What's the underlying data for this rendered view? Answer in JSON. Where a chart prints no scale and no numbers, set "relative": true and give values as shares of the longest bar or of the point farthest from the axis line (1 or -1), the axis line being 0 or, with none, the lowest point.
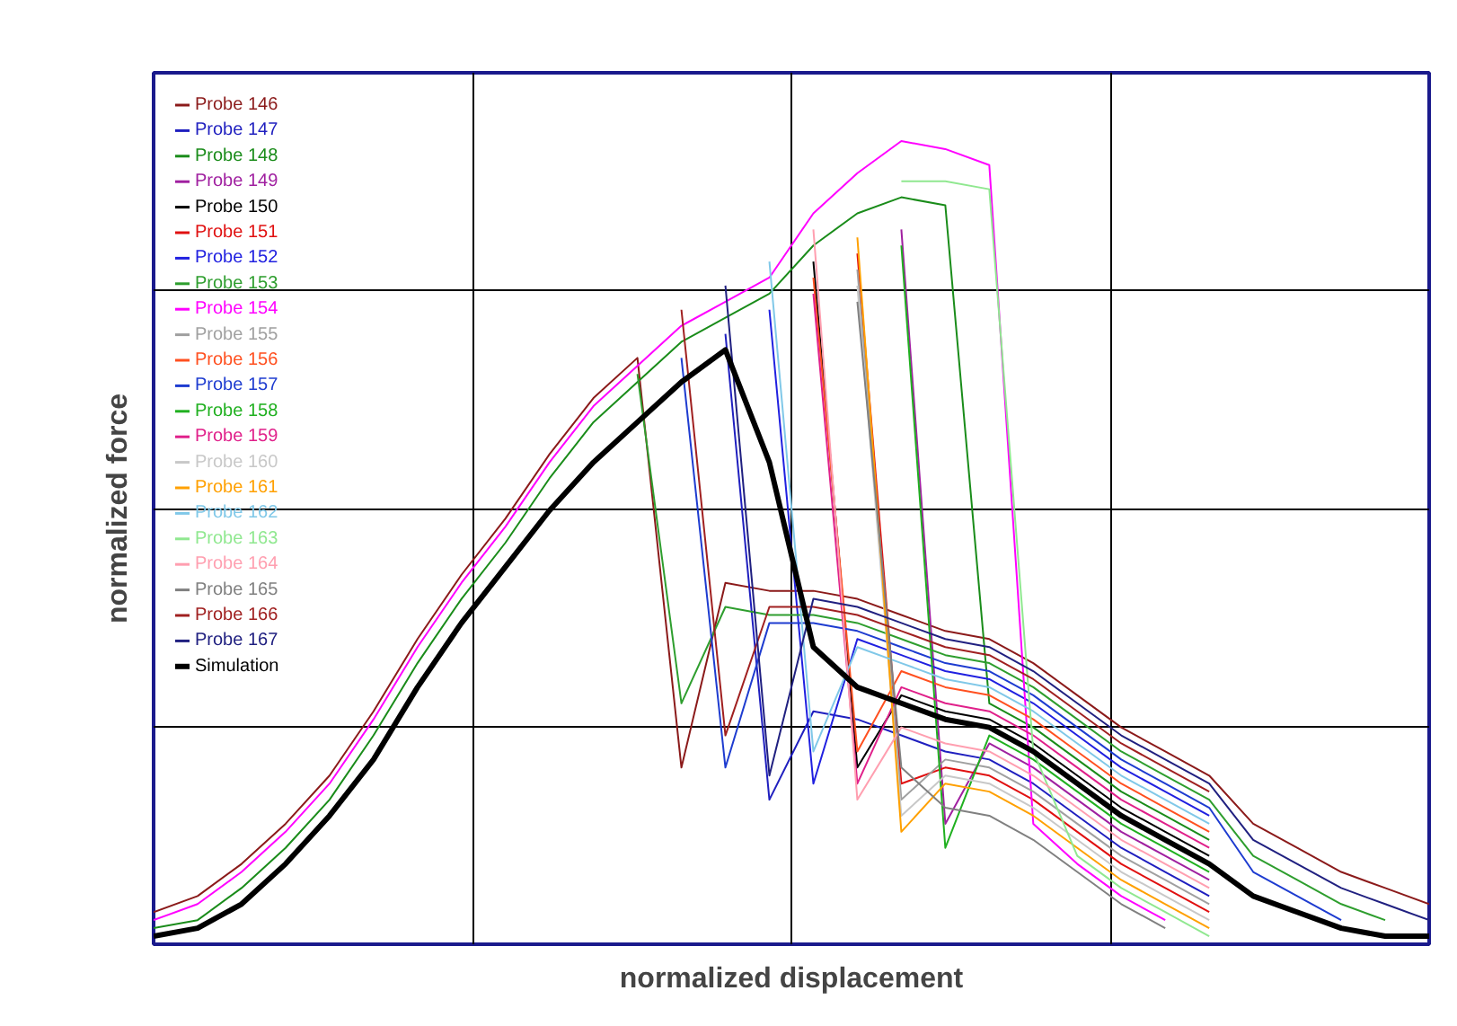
{
  "chart_data": {
    "type": "line",
    "relative": true,
    "xlabel": "normalized displacement",
    "ylabel": "normalized force",
    "grid": true,
    "legend": "top left",
    "tick_labels": false,
    "marker": "none",
    "line_style": "solid",
    "categories": [
      null,
      null,
      null,
      null,
      null,
      null,
      null,
      null,
      null,
      null,
      null,
      null,
      null,
      null,
      null,
      null,
      null,
      null,
      null,
      null,
      null,
      null,
      null,
      null,
      null,
      null,
      null,
      null,
      null,
      null
    ],
    "series": [
      {
        "name": "Probe 146",
        "color": "#8b1a1a",
        "values": [
          0.04,
          0.06,
          0.1,
          0.15,
          0.21,
          0.29,
          0.38,
          0.46,
          0.53,
          0.61,
          0.68,
          0.73,
          0.22,
          0.45,
          0.44,
          0.44,
          0.43,
          0.41,
          0.39,
          0.38,
          0.35,
          0.31,
          0.27,
          0.24,
          0.21,
          0.15,
          0.12,
          0.09,
          0.07,
          0.05
        ]
      },
      {
        "name": "Probe 147",
        "color": "#1f1fbf",
        "values": [
          null,
          null,
          null,
          null,
          null,
          null,
          null,
          null,
          null,
          null,
          null,
          null,
          null,
          0.76,
          0.18,
          0.29,
          0.28,
          0.26,
          0.24,
          0.23,
          0.2,
          0.16,
          0.12,
          0.09,
          0.06,
          null,
          null,
          null,
          null,
          null
        ]
      },
      {
        "name": "Probe 148",
        "color": "#1a8c1a",
        "values": [
          0.02,
          0.03,
          0.07,
          0.12,
          0.18,
          0.26,
          0.35,
          0.43,
          0.5,
          0.58,
          0.65,
          0.7,
          0.75,
          0.78,
          0.81,
          0.87,
          0.91,
          0.93,
          0.92,
          0.3,
          0.27,
          0.23,
          0.19,
          0.16,
          0.13,
          null,
          null,
          null,
          null,
          null
        ]
      },
      {
        "name": "Probe 149",
        "color": "#a020a0",
        "values": [
          null,
          null,
          null,
          null,
          null,
          null,
          null,
          null,
          null,
          null,
          null,
          null,
          null,
          null,
          null,
          null,
          null,
          0.89,
          0.15,
          0.25,
          0.22,
          0.18,
          0.14,
          0.11,
          0.08,
          null,
          null,
          null,
          null,
          null
        ]
      },
      {
        "name": "Probe 150",
        "color": "#000000",
        "values": [
          null,
          null,
          null,
          null,
          null,
          null,
          null,
          null,
          null,
          null,
          null,
          null,
          null,
          null,
          null,
          0.85,
          0.22,
          0.31,
          0.29,
          0.28,
          0.25,
          0.21,
          0.17,
          0.14,
          0.11,
          null,
          null,
          null,
          null,
          null
        ]
      },
      {
        "name": "Probe 151",
        "color": "#e01010",
        "values": [
          null,
          null,
          null,
          null,
          null,
          null,
          null,
          null,
          null,
          null,
          null,
          null,
          null,
          null,
          null,
          null,
          0.86,
          0.2,
          0.22,
          0.21,
          0.18,
          0.14,
          0.1,
          0.07,
          0.04,
          null,
          null,
          null,
          null,
          null
        ]
      },
      {
        "name": "Probe 152",
        "color": "#2020e0",
        "values": [
          null,
          null,
          null,
          null,
          null,
          null,
          null,
          null,
          null,
          null,
          null,
          null,
          null,
          null,
          0.79,
          0.2,
          0.38,
          0.36,
          0.34,
          0.33,
          0.3,
          0.26,
          0.22,
          0.19,
          0.16,
          null,
          null,
          null,
          null,
          null
        ]
      },
      {
        "name": "Probe 153",
        "color": "#2e9e2e",
        "values": [
          null,
          null,
          null,
          null,
          null,
          null,
          null,
          null,
          null,
          null,
          null,
          0.71,
          0.3,
          0.42,
          0.41,
          0.41,
          0.4,
          0.38,
          0.36,
          0.35,
          0.32,
          0.28,
          0.24,
          0.21,
          0.18,
          0.11,
          0.08,
          0.05,
          0.03,
          null
        ]
      },
      {
        "name": "Probe 154",
        "color": "#ff00ff",
        "values": [
          0.03,
          0.05,
          0.09,
          0.14,
          0.2,
          0.28,
          0.37,
          0.45,
          0.52,
          0.6,
          0.67,
          0.72,
          0.77,
          0.8,
          0.83,
          0.91,
          0.96,
          1.0,
          0.99,
          0.97,
          0.15,
          0.1,
          0.06,
          0.03,
          null,
          null,
          null,
          null,
          null,
          null
        ]
      },
      {
        "name": "Probe 155",
        "color": "#a0a0a0",
        "values": [
          null,
          null,
          null,
          null,
          null,
          null,
          null,
          null,
          null,
          null,
          null,
          null,
          null,
          null,
          null,
          null,
          0.84,
          0.18,
          0.23,
          0.22,
          0.19,
          0.15,
          0.11,
          0.08,
          0.05,
          null,
          null,
          null,
          null,
          null
        ]
      },
      {
        "name": "Probe 156",
        "color": "#ff5020",
        "values": [
          null,
          null,
          null,
          null,
          null,
          null,
          null,
          null,
          null,
          null,
          null,
          null,
          null,
          null,
          null,
          0.83,
          0.24,
          0.34,
          0.32,
          0.31,
          0.28,
          0.24,
          0.2,
          0.17,
          0.14,
          null,
          null,
          null,
          null,
          null
        ]
      },
      {
        "name": "Probe 157",
        "color": "#1e3cd0",
        "values": [
          null,
          null,
          null,
          null,
          null,
          null,
          null,
          null,
          null,
          null,
          null,
          null,
          0.73,
          0.22,
          0.4,
          0.4,
          0.39,
          0.37,
          0.35,
          0.34,
          0.31,
          0.27,
          0.23,
          0.2,
          0.17,
          0.09,
          0.06,
          0.03,
          null,
          null
        ]
      },
      {
        "name": "Probe 158",
        "color": "#20b020",
        "values": [
          null,
          null,
          null,
          null,
          null,
          null,
          null,
          null,
          null,
          null,
          null,
          null,
          null,
          null,
          null,
          null,
          null,
          0.87,
          0.12,
          0.26,
          0.23,
          0.19,
          0.15,
          0.12,
          0.09,
          null,
          null,
          null,
          null,
          null
        ]
      },
      {
        "name": "Probe 159",
        "color": "#e0208a",
        "values": [
          null,
          null,
          null,
          null,
          null,
          null,
          null,
          null,
          null,
          null,
          null,
          null,
          null,
          null,
          null,
          0.81,
          0.2,
          0.32,
          0.3,
          0.29,
          0.26,
          0.22,
          0.18,
          0.15,
          0.12,
          null,
          null,
          null,
          null,
          null
        ]
      },
      {
        "name": "Probe 160",
        "color": "#c8c8c8",
        "values": [
          null,
          null,
          null,
          null,
          null,
          null,
          null,
          null,
          null,
          null,
          null,
          null,
          null,
          null,
          null,
          null,
          0.82,
          0.16,
          0.21,
          0.2,
          0.17,
          0.13,
          0.09,
          0.06,
          0.03,
          null,
          null,
          null,
          null,
          null
        ]
      },
      {
        "name": "Probe 161",
        "color": "#ffa000",
        "values": [
          null,
          null,
          null,
          null,
          null,
          null,
          null,
          null,
          null,
          null,
          null,
          null,
          null,
          null,
          null,
          null,
          0.88,
          0.14,
          0.2,
          0.19,
          0.16,
          0.12,
          0.08,
          0.05,
          0.02,
          null,
          null,
          null,
          null,
          null
        ]
      },
      {
        "name": "Probe 162",
        "color": "#80c8e8",
        "values": [
          null,
          null,
          null,
          null,
          null,
          null,
          null,
          null,
          null,
          null,
          null,
          null,
          null,
          null,
          0.85,
          0.24,
          0.37,
          0.35,
          0.33,
          0.32,
          0.29,
          0.25,
          0.21,
          0.18,
          0.15,
          null,
          null,
          null,
          null,
          null
        ]
      },
      {
        "name": "Probe 163",
        "color": "#90e890",
        "values": [
          null,
          null,
          null,
          null,
          null,
          null,
          null,
          null,
          null,
          null,
          null,
          null,
          null,
          null,
          null,
          null,
          null,
          0.95,
          0.95,
          0.94,
          0.24,
          0.11,
          0.07,
          0.04,
          0.01,
          null,
          null,
          null,
          null,
          null
        ]
      },
      {
        "name": "Probe 164",
        "color": "#ff9fb0",
        "values": [
          null,
          null,
          null,
          null,
          null,
          null,
          null,
          null,
          null,
          null,
          null,
          null,
          null,
          null,
          null,
          0.89,
          0.18,
          0.27,
          0.25,
          0.24,
          0.21,
          0.17,
          0.13,
          0.1,
          0.07,
          null,
          null,
          null,
          null,
          null
        ]
      },
      {
        "name": "Probe 165",
        "color": "#808080",
        "values": [
          null,
          null,
          null,
          null,
          null,
          null,
          null,
          null,
          null,
          null,
          null,
          null,
          null,
          null,
          null,
          null,
          0.8,
          0.22,
          0.17,
          0.16,
          0.13,
          0.09,
          0.05,
          0.02,
          null,
          null,
          null,
          null,
          null,
          null
        ]
      },
      {
        "name": "Probe 166",
        "color": "#a02020",
        "values": [
          null,
          null,
          null,
          null,
          null,
          null,
          null,
          null,
          null,
          null,
          null,
          null,
          0.79,
          0.26,
          0.42,
          0.42,
          0.41,
          0.39,
          0.37,
          0.36,
          0.33,
          0.29,
          0.25,
          0.22,
          0.19,
          null,
          null,
          null,
          null,
          null
        ]
      },
      {
        "name": "Probe 167",
        "color": "#202080",
        "values": [
          null,
          null,
          null,
          null,
          null,
          null,
          null,
          null,
          null,
          null,
          null,
          null,
          null,
          0.82,
          0.21,
          0.43,
          0.42,
          0.4,
          0.38,
          0.37,
          0.34,
          0.3,
          0.26,
          0.23,
          0.2,
          0.13,
          0.1,
          0.07,
          0.05,
          0.03
        ]
      },
      {
        "name": "Simulation",
        "color": "#000000",
        "values": [
          0.01,
          0.02,
          0.05,
          0.1,
          0.16,
          0.23,
          0.32,
          0.4,
          0.47,
          0.54,
          0.6,
          0.65,
          0.7,
          0.74,
          0.6,
          0.37,
          0.32,
          0.3,
          0.28,
          0.27,
          0.24,
          0.2,
          0.16,
          0.13,
          0.1,
          0.06,
          0.04,
          0.02,
          0.01,
          0.01
        ]
      }
    ]
  }
}
